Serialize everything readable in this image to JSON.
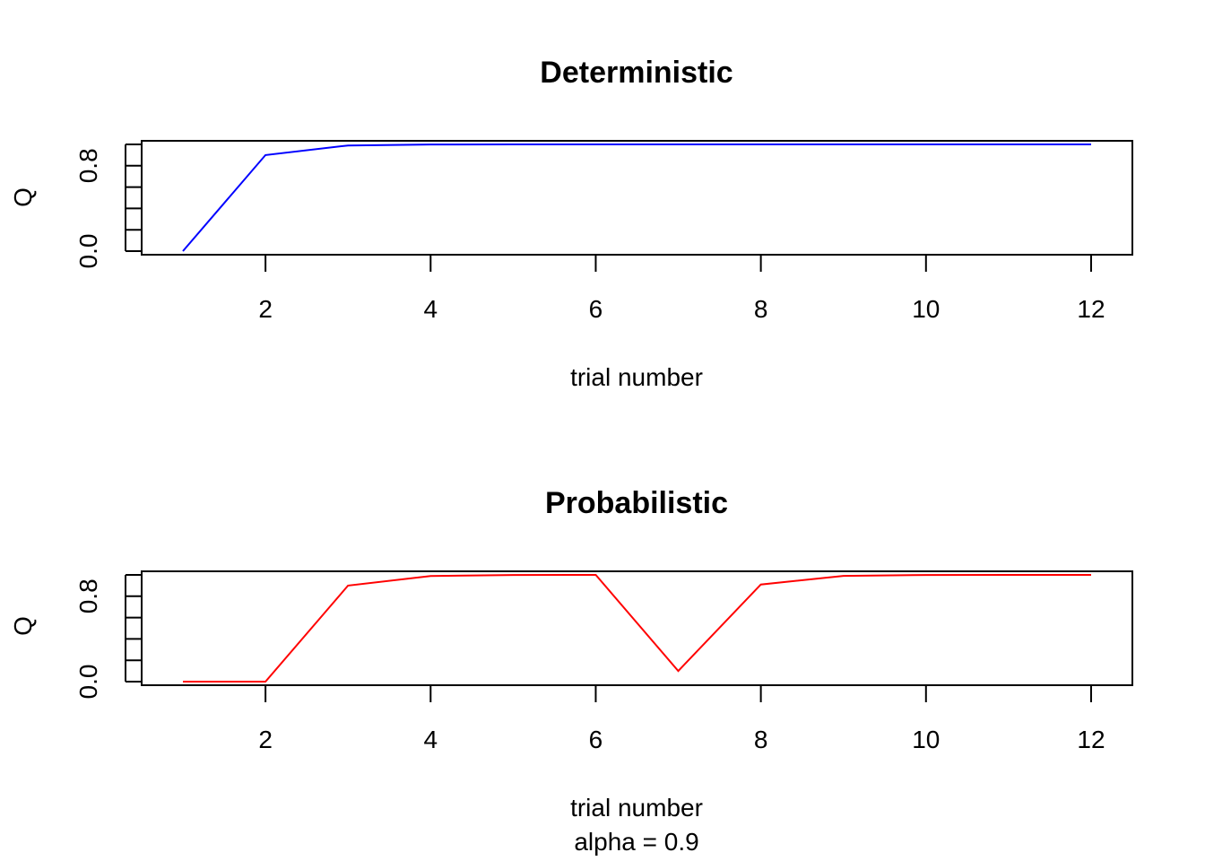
{
  "chart_data": [
    {
      "type": "line",
      "title": "Deterministic",
      "xlabel": "trial number",
      "ylabel": "Q",
      "xlim": [
        0.5,
        12.5
      ],
      "ylim": [
        0.0,
        1.0
      ],
      "x": [
        1,
        2,
        3,
        4,
        5,
        6,
        7,
        8,
        9,
        10,
        11,
        12
      ],
      "series": [
        {
          "name": "Q",
          "color": "#0000ff",
          "values": [
            0.0,
            0.9,
            0.99,
            0.999,
            0.9999,
            1.0,
            1.0,
            1.0,
            1.0,
            1.0,
            1.0,
            1.0
          ]
        }
      ],
      "xticks": [
        2,
        4,
        6,
        8,
        10,
        12
      ],
      "yticks": [
        0.0,
        0.2,
        0.4,
        0.6,
        0.8,
        1.0
      ],
      "ytick_labels": [
        "0.0",
        "0.8"
      ],
      "ytick_label_values": [
        0.0,
        0.8
      ]
    },
    {
      "type": "line",
      "title": "Probabilistic",
      "xlabel": "trial number",
      "subtitle": "alpha = 0.9",
      "ylabel": "Q",
      "xlim": [
        0.5,
        12.5
      ],
      "ylim": [
        0.0,
        1.0
      ],
      "x": [
        1,
        2,
        3,
        4,
        5,
        6,
        7,
        8,
        9,
        10,
        11,
        12
      ],
      "series": [
        {
          "name": "Q",
          "color": "#ff0000",
          "values": [
            0.0,
            0.0,
            0.9,
            0.99,
            0.999,
            0.9999,
            0.1,
            0.91,
            0.991,
            0.9991,
            0.9999,
            1.0
          ]
        }
      ],
      "xticks": [
        2,
        4,
        6,
        8,
        10,
        12
      ],
      "yticks": [
        0.0,
        0.2,
        0.4,
        0.6,
        0.8,
        1.0
      ],
      "ytick_labels": [
        "0.0",
        "0.8"
      ],
      "ytick_label_values": [
        0.0,
        0.8
      ]
    }
  ]
}
